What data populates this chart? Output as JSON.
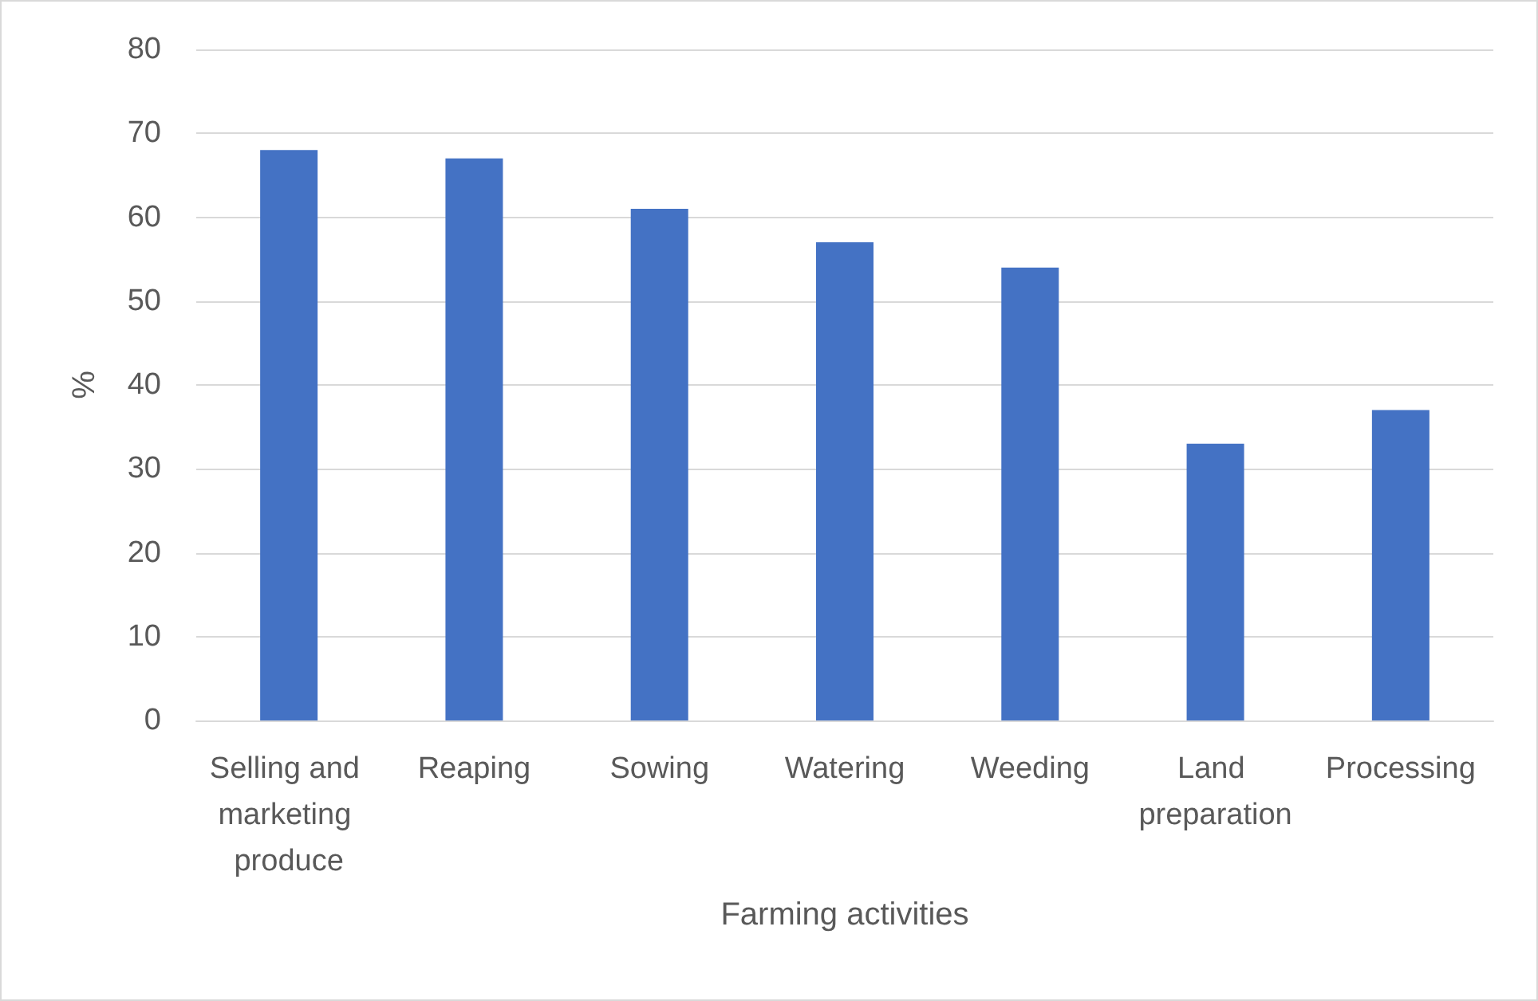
{
  "chart_data": {
    "type": "bar",
    "xlabel": "Farming activities",
    "ylabel": "%",
    "categories": [
      "Selling and marketing produce",
      "Reaping",
      "Sowing",
      "Watering",
      "Weeding",
      "Land preparation",
      "Processing"
    ],
    "values": [
      68,
      67,
      61,
      57,
      54,
      33,
      37
    ],
    "color": "#4472c4",
    "ylim": [
      0,
      80
    ],
    "yticks": [
      0,
      10,
      20,
      30,
      40,
      50,
      60,
      70,
      80
    ],
    "grid": "y"
  }
}
